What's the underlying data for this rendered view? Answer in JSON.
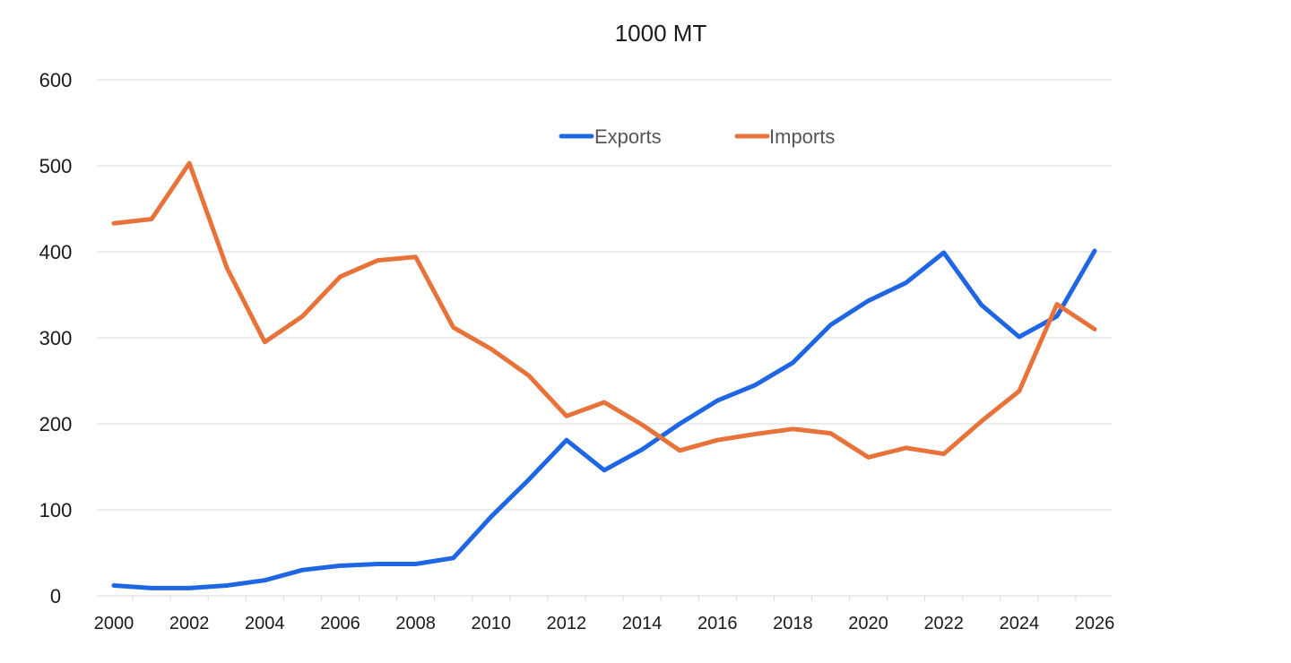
{
  "chart_data": {
    "type": "line",
    "title": "1000 MT",
    "xlabel": "",
    "ylabel": "",
    "x": [
      2000,
      2001,
      2002,
      2003,
      2004,
      2005,
      2006,
      2007,
      2008,
      2009,
      2010,
      2011,
      2012,
      2013,
      2014,
      2015,
      2016,
      2017,
      2018,
      2019,
      2020,
      2021,
      2022,
      2023,
      2024,
      2025,
      2026
    ],
    "xlim": [
      2000,
      2026
    ],
    "ylim": [
      0,
      600
    ],
    "x_ticks": [
      2000,
      2002,
      2004,
      2006,
      2008,
      2010,
      2012,
      2014,
      2016,
      2018,
      2020,
      2022,
      2024,
      2026
    ],
    "y_ticks": [
      0,
      100,
      200,
      300,
      400,
      500,
      600
    ],
    "grid": true,
    "legend_position": "top-center",
    "series": [
      {
        "name": "Exports",
        "color": "#1f66e5",
        "values": [
          12,
          9,
          9,
          12,
          18,
          30,
          35,
          37,
          37,
          44,
          92,
          135,
          181,
          146,
          170,
          200,
          227,
          245,
          271,
          315,
          343,
          364,
          399,
          338,
          301,
          325,
          401
        ]
      },
      {
        "name": "Imports",
        "color": "#e8733a",
        "values": [
          433,
          438,
          503,
          381,
          295,
          325,
          371,
          390,
          394,
          312,
          287,
          256,
          209,
          225,
          199,
          169,
          181,
          188,
          194,
          189,
          161,
          172,
          165,
          203,
          238,
          339,
          310
        ]
      }
    ]
  }
}
